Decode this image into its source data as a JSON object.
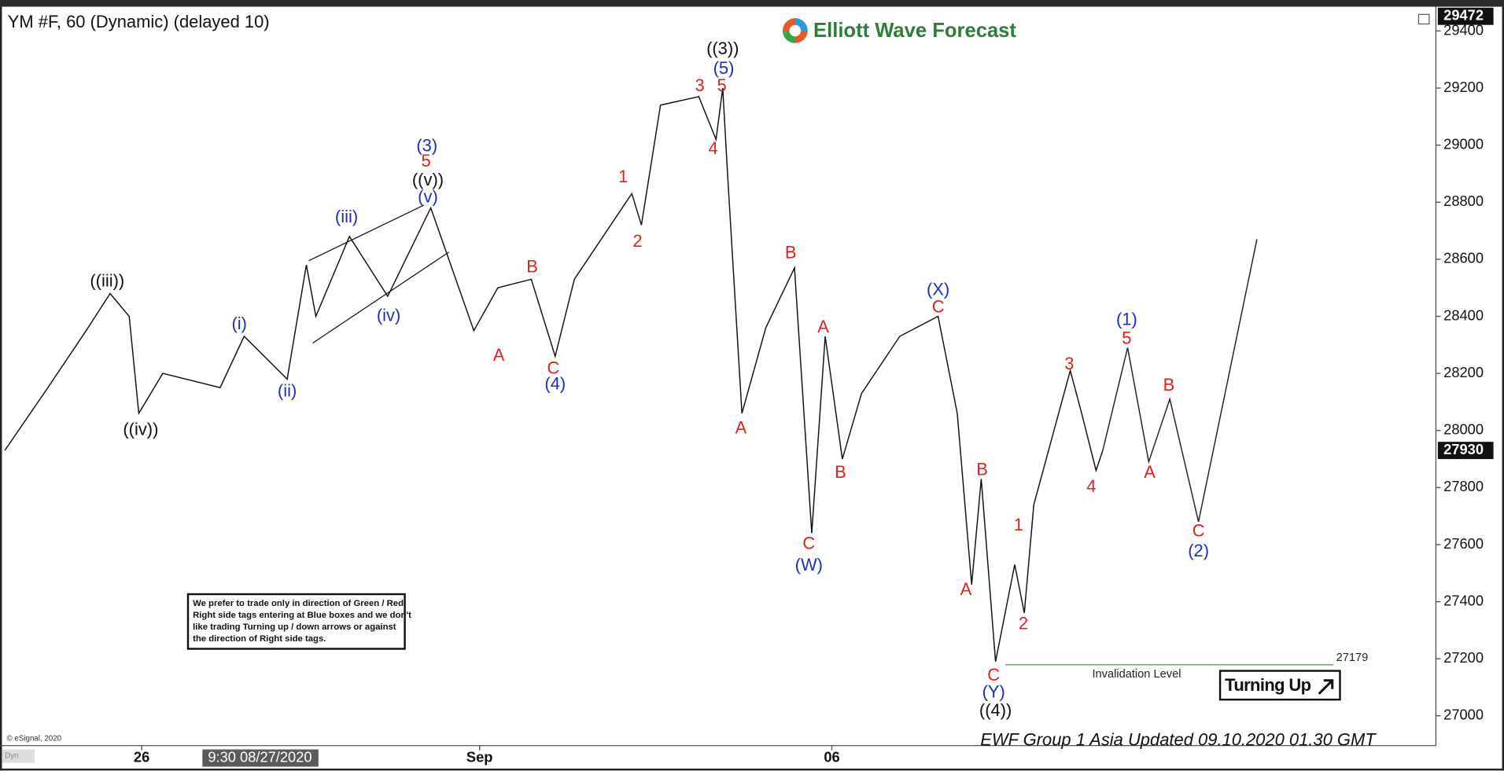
{
  "chart_data": {
    "type": "line",
    "title": "YM #F, 60 (Dynamic) (delayed 10)",
    "logo": "Elliott Wave Forecast",
    "ylim": [
      26900,
      29475
    ],
    "yticks": [
      27000,
      27200,
      27400,
      27600,
      27800,
      28000,
      28200,
      28400,
      28600,
      28800,
      29000,
      29200,
      29400
    ],
    "xlim": [
      0,
      300
    ],
    "xticks": [
      {
        "value": 29.6,
        "label": "26"
      },
      {
        "value": 100.2,
        "label": "Sep"
      },
      {
        "value": 173.8,
        "label": "06"
      }
    ],
    "crosshair_label": "9:30 08/27/2020",
    "price_markers": [
      29472,
      27930
    ],
    "price_path": {
      "color": "#111111",
      "x": [
        1,
        10,
        18,
        23,
        27,
        29,
        34,
        46,
        51,
        60,
        64,
        66,
        73,
        81,
        90,
        99,
        104,
        111,
        116,
        120,
        132,
        134,
        138,
        146,
        149.6,
        151,
        152,
        155,
        160,
        166,
        169.6,
        172.4,
        176,
        180,
        188,
        196,
        200,
        203,
        205,
        208,
        212,
        214,
        216,
        223.6,
        226,
        229,
        230.4
      ],
      "values": [
        27930,
        28150,
        28350,
        28480,
        28400,
        28060,
        28200,
        28150,
        28330,
        28180,
        28580,
        28400,
        28680,
        28470,
        28780,
        28350,
        28500,
        28530,
        28260,
        28530,
        28830,
        28720,
        29140,
        29170,
        29020,
        29200,
        28900,
        28060,
        28360,
        28570,
        27640,
        28330,
        27900,
        28130,
        28330,
        28400,
        28060,
        27460,
        27830,
        27190,
        27530,
        27360,
        27740,
        28210,
        28060,
        27860,
        27930
      ]
    },
    "projection": {
      "color": "#222222",
      "x": [
        230.4,
        235.6,
        240,
        244.4,
        250.4,
        262.6
      ],
      "values": [
        27930,
        28290,
        27890,
        28110,
        27680,
        28670
      ]
    },
    "invalidation": {
      "value": 27179,
      "label": "Invalidation Level",
      "color": "#4caf50"
    },
    "annotations": [
      {
        "text": "((iii))",
        "x": 22.4,
        "y": 28520,
        "color": "#111111"
      },
      {
        "text": "((iv))",
        "x": 29.4,
        "y": 28000,
        "color": "#111111"
      },
      {
        "text": "(i)",
        "x": 50,
        "y": 28370,
        "color": "#1a2fbf"
      },
      {
        "text": "(ii)",
        "x": 60,
        "y": 28135,
        "color": "#1a2fbf"
      },
      {
        "text": "(iii)",
        "x": 72.4,
        "y": 28745,
        "color": "#1a2fbf"
      },
      {
        "text": "(iv)",
        "x": 81.2,
        "y": 28400,
        "color": "#1a2fbf"
      },
      {
        "text": "(v)",
        "x": 89.4,
        "y": 28815,
        "color": "#1a2fbf"
      },
      {
        "text": "((v))",
        "x": 89.4,
        "y": 28875,
        "color": "#111111"
      },
      {
        "text": "5",
        "x": 89,
        "y": 28940,
        "color": "#e0201c"
      },
      {
        "text": "(3)",
        "x": 89.2,
        "y": 28995,
        "color": "#1a2fbf"
      },
      {
        "text": "A",
        "x": 104.2,
        "y": 28260,
        "color": "#e0201c"
      },
      {
        "text": "B",
        "x": 111.2,
        "y": 28570,
        "color": "#e0201c"
      },
      {
        "text": "C",
        "x": 115.6,
        "y": 28215,
        "color": "#e0201c"
      },
      {
        "text": "(4)",
        "x": 116,
        "y": 28160,
        "color": "#1a2fbf"
      },
      {
        "text": "1",
        "x": 130.2,
        "y": 28885,
        "color": "#e0201c"
      },
      {
        "text": "2",
        "x": 133.2,
        "y": 28660,
        "color": "#e0201c"
      },
      {
        "text": "3",
        "x": 146.2,
        "y": 29205,
        "color": "#e0201c"
      },
      {
        "text": "4",
        "x": 149,
        "y": 28985,
        "color": "#e0201c"
      },
      {
        "text": "5",
        "x": 150.8,
        "y": 29205,
        "color": "#e0201c"
      },
      {
        "text": "(5)",
        "x": 151.2,
        "y": 29265,
        "color": "#1a2fbf"
      },
      {
        "text": "((3))",
        "x": 151,
        "y": 29335,
        "color": "#111111"
      },
      {
        "text": "A",
        "x": 154.8,
        "y": 28005,
        "color": "#e0201c"
      },
      {
        "text": "B",
        "x": 165.2,
        "y": 28620,
        "color": "#e0201c"
      },
      {
        "text": "C",
        "x": 169,
        "y": 27600,
        "color": "#e0201c"
      },
      {
        "text": "(W)",
        "x": 169,
        "y": 27525,
        "color": "#1a2fbf"
      },
      {
        "text": "A",
        "x": 172,
        "y": 28360,
        "color": "#e0201c"
      },
      {
        "text": "B",
        "x": 175.6,
        "y": 27850,
        "color": "#e0201c"
      },
      {
        "text": "(X)",
        "x": 196,
        "y": 28490,
        "color": "#1a2fbf"
      },
      {
        "text": "C",
        "x": 196,
        "y": 28430,
        "color": "#e0201c"
      },
      {
        "text": "A",
        "x": 201.8,
        "y": 27440,
        "color": "#e0201c"
      },
      {
        "text": "B",
        "x": 205.2,
        "y": 27860,
        "color": "#e0201c"
      },
      {
        "text": "C",
        "x": 207.6,
        "y": 27140,
        "color": "#e0201c"
      },
      {
        "text": "(Y)",
        "x": 207.6,
        "y": 27080,
        "color": "#1a2fbf"
      },
      {
        "text": "((4))",
        "x": 208,
        "y": 27015,
        "color": "#111111"
      },
      {
        "text": "1",
        "x": 212.8,
        "y": 27665,
        "color": "#e0201c"
      },
      {
        "text": "2",
        "x": 213.8,
        "y": 27320,
        "color": "#e0201c"
      },
      {
        "text": "3",
        "x": 223.4,
        "y": 28230,
        "color": "#e0201c"
      },
      {
        "text": "4",
        "x": 228,
        "y": 27800,
        "color": "#e0201c"
      },
      {
        "text": "(1)",
        "x": 235.4,
        "y": 28385,
        "color": "#1a2fbf"
      },
      {
        "text": "5",
        "x": 235.4,
        "y": 28320,
        "color": "#e0201c"
      },
      {
        "text": "A",
        "x": 240.2,
        "y": 27850,
        "color": "#e0201c"
      },
      {
        "text": "B",
        "x": 244.2,
        "y": 28155,
        "color": "#e0201c"
      },
      {
        "text": "C",
        "x": 250.4,
        "y": 27645,
        "color": "#e0201c"
      },
      {
        "text": "(2)",
        "x": 250.4,
        "y": 27575,
        "color": "#1a2fbf"
      }
    ],
    "note": [
      "We prefer to trade only in direction of Green / Red",
      "Right side tags entering at Blue boxes and we don't",
      "like trading Turning up / down arrows or against",
      "the direction of Right side tags."
    ],
    "badge": "Turning Up",
    "copyright": "© eSignal, 2020",
    "footer": "EWF Group 1 Asia Updated 09.10.2020 01.30 GMT",
    "corner_tag": "Dyn"
  }
}
